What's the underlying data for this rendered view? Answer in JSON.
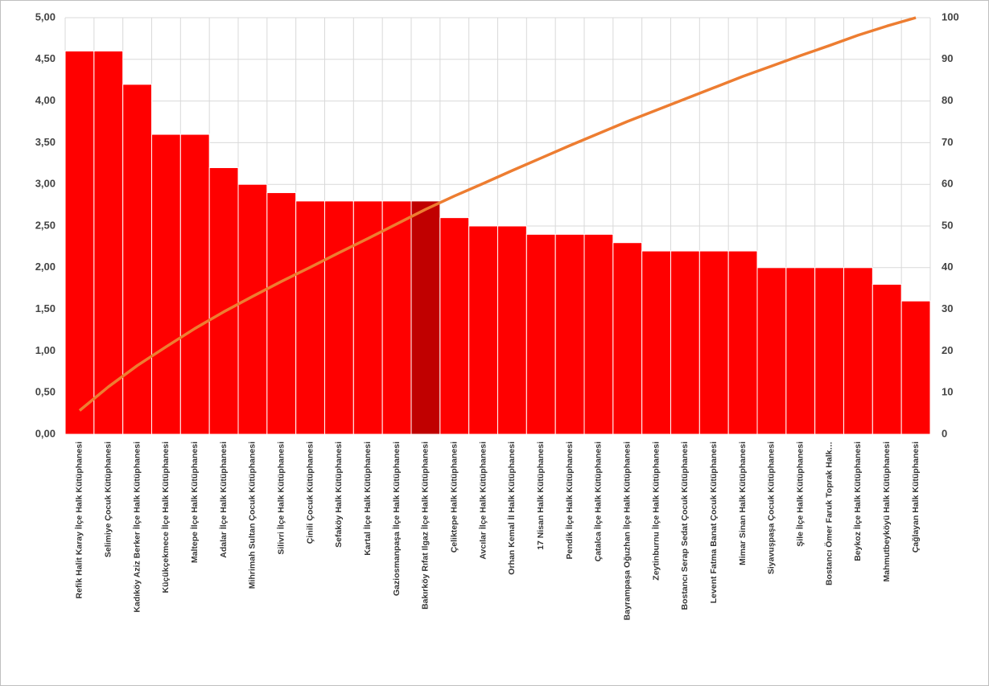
{
  "chart_data": {
    "type": "pareto",
    "categories": [
      "Refik Halit Karay İlçe Halk Kütüphanesi",
      "Selimiye Çocuk Kütüphanesi",
      "Kadıköy Aziz Berker İlçe Halk Kütüphanesi",
      "Küçükçekmece İlçe Halk Kütüphanesi",
      "Maltepe İlçe Halk Kütüphanesi",
      "Adalar İlçe Halk Kütüphanesi",
      "Mihrimah Sultan Çocuk Kütüphanesi",
      "Silivri İlçe Halk Kütüphanesi",
      "Çinili Çocuk Kütüphanesi",
      "Sefaköy Halk Kütüphanesi",
      "Kartal İlçe Halk Kütüphanesi",
      "Gaziosmanpaşa İlçe Halk Kütüphanesi",
      "Bakırköy Rıfat Ilgaz İlçe Halk Kütüphanesi",
      "Çeliktepe Halk Kütüphanesi",
      "Avcılar İlçe Halk Kütüphanesi",
      "Orhan Kemal İl Halk Kütüphanesi",
      "17 Nisan Halk Kütüphanesi",
      "Pendik İlçe Halk Kütüphanesi",
      "Çatalca İlçe Halk Kütüphanesi",
      "Bayrampaşa Oğuzhan İlçe Halk Kütüphanesi",
      "Zeytinburnu İlçe Halk Kütüphanesi",
      "Bostancı Serap Sedat Çocuk Kütüphanesi",
      "Levent Fatma Banat Çocuk Kütüphanesi",
      "Mimar Sinan Halk Kütüphanesi",
      "Siyavuşpaşa Çocuk Kütüphanesi",
      "Şile İlçe Halk Kütüphanesi",
      "Bostancı Ömer Faruk Toprak Halk…",
      "Beykoz İlçe Halk Kütüphanesi",
      "Mahmutbeyköyü Halk Kütüphanesi",
      "Çağlayan Halk Kütüphanesi"
    ],
    "series": [
      {
        "type": "bar",
        "color": "#ff0000",
        "colors": [
          "#ff0000",
          "#ff0000",
          "#ff0000",
          "#ff0000",
          "#ff0000",
          "#ff0000",
          "#ff0000",
          "#ff0000",
          "#ff0000",
          "#ff0000",
          "#ff0000",
          "#ff0000",
          "#c00000",
          "#ff0000",
          "#ff0000",
          "#ff0000",
          "#ff0000",
          "#ff0000",
          "#ff0000",
          "#ff0000",
          "#ff0000",
          "#ff0000",
          "#ff0000",
          "#ff0000",
          "#ff0000",
          "#ff0000",
          "#ff0000",
          "#ff0000",
          "#ff0000",
          "#ff0000"
        ],
        "values": [
          4.6,
          4.6,
          4.2,
          3.6,
          3.6,
          3.2,
          3.0,
          2.9,
          2.8,
          2.8,
          2.8,
          2.8,
          2.8,
          2.6,
          2.5,
          2.5,
          2.4,
          2.4,
          2.4,
          2.3,
          2.2,
          2.2,
          2.2,
          2.2,
          2.0,
          2.0,
          2.0,
          2.0,
          1.8,
          1.6
        ]
      },
      {
        "type": "line",
        "axis": "y2",
        "color": "#ed7d31",
        "values": [
          5.7,
          11.4,
          16.5,
          21.0,
          25.4,
          29.4,
          33.1,
          36.7,
          40.1,
          43.6,
          47.0,
          50.5,
          54.0,
          57.2,
          60.2,
          63.3,
          66.3,
          69.3,
          72.2,
          75.1,
          77.8,
          80.5,
          83.2,
          85.9,
          88.4,
          90.9,
          93.3,
          95.8,
          98.0,
          100
        ]
      }
    ],
    "ylim": [
      0,
      5
    ],
    "yticks": [
      {
        "value": 0,
        "label": "0,00"
      },
      {
        "value": 0.5,
        "label": "0,50"
      },
      {
        "value": 1,
        "label": "1,00"
      },
      {
        "value": 1.5,
        "label": "1,50"
      },
      {
        "value": 2,
        "label": "2,00"
      },
      {
        "value": 2.5,
        "label": "2,50"
      },
      {
        "value": 3,
        "label": "3,00"
      },
      {
        "value": 3.5,
        "label": "3,50"
      },
      {
        "value": 4,
        "label": "4,00"
      },
      {
        "value": 4.5,
        "label": "4,50"
      },
      {
        "value": 5,
        "label": "5,00"
      }
    ],
    "y2lim": [
      0,
      100
    ],
    "y2ticks": [
      0,
      10,
      20,
      30,
      40,
      50,
      60,
      70,
      80,
      90,
      100
    ],
    "grid": true
  }
}
